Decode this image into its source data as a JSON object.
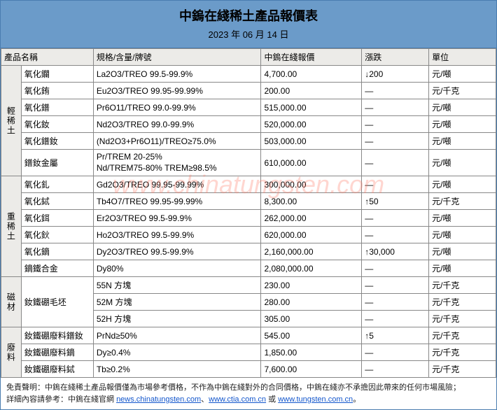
{
  "header": {
    "title": "中鎢在綫稀土產品報價表",
    "date": "2023 年 06 月 14 日"
  },
  "columns": {
    "name": "產品名稱",
    "spec": "規格/含量/牌號",
    "price": "中鎢在綫報價",
    "change": "漲跌",
    "unit": "單位"
  },
  "groups": [
    {
      "label": "輕稀土",
      "rows": [
        {
          "name": "氧化鑭",
          "spec": "La2O3/TREO 99.5-99.9%",
          "price": "4,700.00",
          "change": "↓200",
          "unit": "元/噸"
        },
        {
          "name": "氧化銪",
          "spec": "Eu2O3/TREO 99.95-99.99%",
          "price": "200.00",
          "change": "—",
          "unit": "元/千克"
        },
        {
          "name": "氧化鐠",
          "spec": "Pr6O11/TREO 99.0-99.9%",
          "price": "515,000.00",
          "change": "—",
          "unit": "元/噸"
        },
        {
          "name": "氧化釹",
          "spec": "Nd2O3/TREO 99.0-99.9%",
          "price": "520,000.00",
          "change": "—",
          "unit": "元/噸"
        },
        {
          "name": "氧化鐠釹",
          "spec": "(Nd2O3+Pr6O11)/TREO≥75.0%",
          "price": "503,000.00",
          "change": "—",
          "unit": "元/噸"
        },
        {
          "name": "鐠釹金屬",
          "spec": "Pr/TREM 20-25%\nNd/TREM75-80% TREM≥98.5%",
          "price": "610,000.00",
          "change": "—",
          "unit": "元/噸",
          "tall": true
        }
      ]
    },
    {
      "label": "重稀土",
      "rows": [
        {
          "name": "氧化釓",
          "spec": "Gd2O3/TREO 99.95-99.99%",
          "price": "300,000.00",
          "change": "—",
          "unit": "元/噸"
        },
        {
          "name": "氧化鋱",
          "spec": "Tb4O7/TREO 99.95-99.99%",
          "price": "8,300.00",
          "change": "↑50",
          "unit": "元/千克"
        },
        {
          "name": "氧化鉺",
          "spec": "Er2O3/TREO 99.5-99.9%",
          "price": "262,000.00",
          "change": "—",
          "unit": "元/噸"
        },
        {
          "name": "氧化鈥",
          "spec": "Ho2O3/TREO 99.5-99.9%",
          "price": "620,000.00",
          "change": "—",
          "unit": "元/噸"
        },
        {
          "name": "氧化鏑",
          "spec": "Dy2O3/TREO 99.5-99.9%",
          "price": "2,160,000.00",
          "change": "↑30,000",
          "unit": "元/噸"
        },
        {
          "name": "鏑鐵合金",
          "spec": "Dy80%",
          "price": "2,080,000.00",
          "change": "—",
          "unit": "元/噸"
        }
      ]
    },
    {
      "label": "磁材",
      "rows": [
        {
          "name": "釹鐵硼毛坯",
          "spec": "55N 方塊",
          "price": "230.00",
          "change": "—",
          "unit": "元/千克",
          "merge": 3
        },
        {
          "name": "",
          "spec": "52M 方塊",
          "price": "280.00",
          "change": "—",
          "unit": "元/千克"
        },
        {
          "name": "",
          "spec": "52H 方塊",
          "price": "305.00",
          "change": "—",
          "unit": "元/千克"
        }
      ]
    },
    {
      "label": "廢料",
      "rows": [
        {
          "name": "釹鐵硼廢料鐠釹",
          "spec": "PrNd≥50%",
          "price": "545.00",
          "change": "↑5",
          "unit": "元/千克"
        },
        {
          "name": "釹鐵硼廢料鏑",
          "spec": "Dy≥0.4%",
          "price": "1,850.00",
          "change": "—",
          "unit": "元/千克"
        },
        {
          "name": "釹鐵硼廢料鋱",
          "spec": "Tb≥0.2%",
          "price": "7,600.00",
          "change": "—",
          "unit": "元/千克"
        }
      ]
    }
  ],
  "footer": {
    "disclaimer_label": "免責聲明：",
    "disclaimer_text": "中鎢在綫稀土產品報價僅為市場參考價格，不作為中鎢在綫對外的合同價格，中鎢在綫亦不承擔因此帶來的任何市場風險；",
    "detail_label": "詳細內容請參考：",
    "detail_text1": "中鎢在綫官網 ",
    "link1": "news.chinatungsten.com",
    "sep1": "、",
    "link2": "www.ctia.com.cn",
    "sep2": " 或 ",
    "link3": "www.tungsten.com.cn",
    "tail": "。"
  },
  "watermark": "www.chinatungsten.com",
  "colors": {
    "header_bg": "#6b9bc9",
    "border": "#4a7db0",
    "cell_border": "#888888",
    "th_bg": "#ecebe8"
  }
}
